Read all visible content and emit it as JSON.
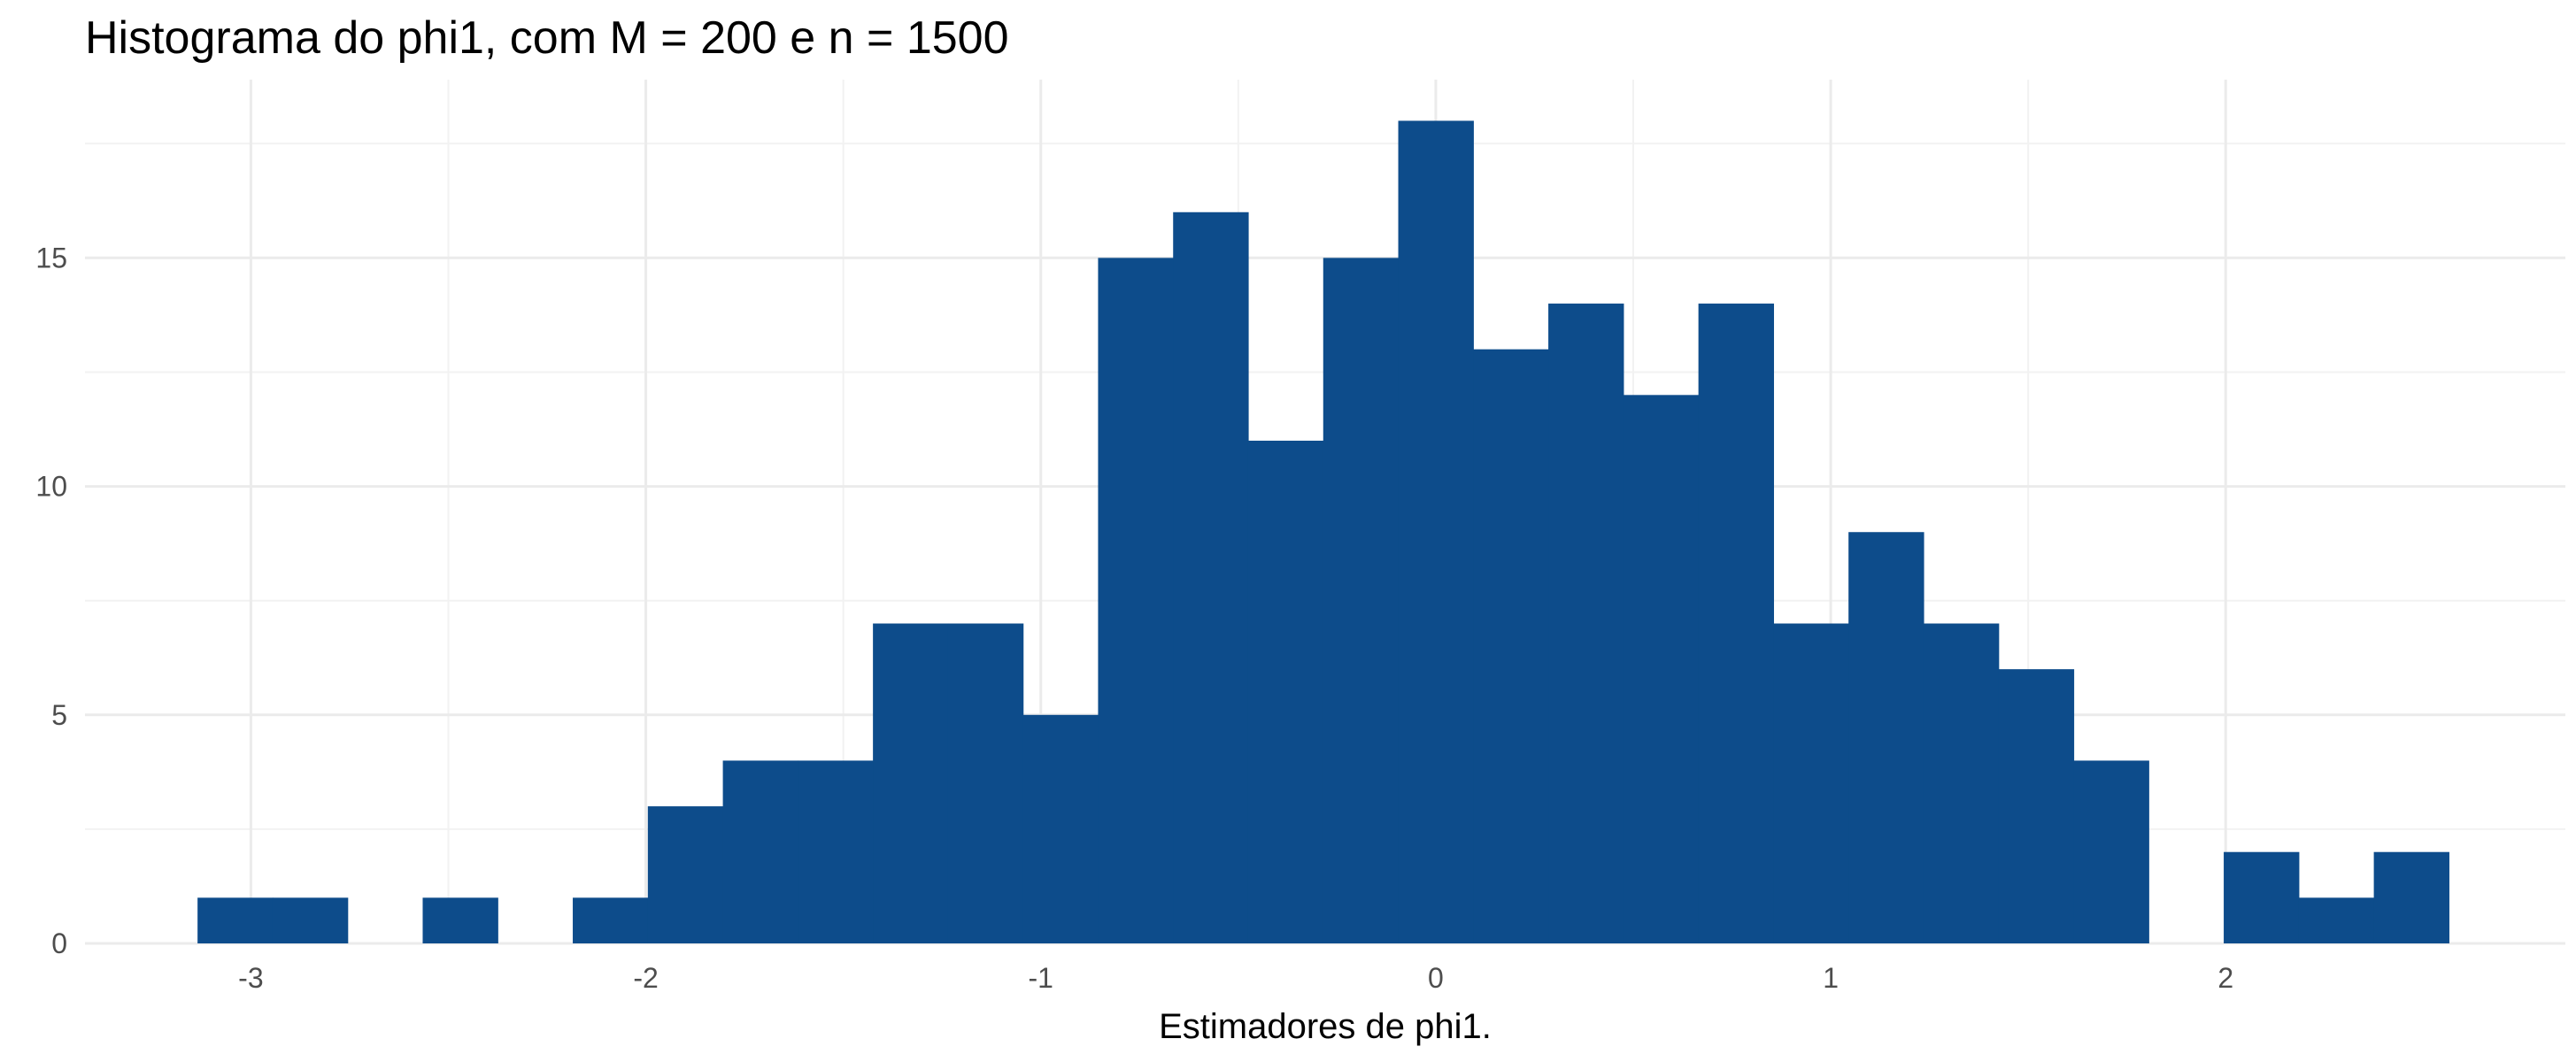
{
  "chart_data": {
    "type": "bar",
    "title": "Histograma do phi1, com M = 200 e n = 1500",
    "xlabel": "Estimadores de phi1.",
    "ylabel": "",
    "xlim": [
      -3.42,
      2.86
    ],
    "ylim": [
      0,
      18.9
    ],
    "x_ticks": [
      -3,
      -2,
      -1,
      0,
      1,
      2
    ],
    "x_tick_labels": [
      "-3",
      "-2",
      "-1",
      "0",
      "1",
      "2"
    ],
    "y_ticks": [
      0,
      5,
      10,
      15
    ],
    "y_tick_labels": [
      "0",
      "5",
      "10",
      "15"
    ],
    "grid": true,
    "legend": "none",
    "bar_color": "#0D4C8B",
    "bin_width": 0.19,
    "bin_centers": [
      -3.04,
      -2.85,
      -2.66,
      -2.47,
      -2.28,
      -2.09,
      -1.9,
      -1.71,
      -1.52,
      -1.33,
      -1.14,
      -0.95,
      -0.76,
      -0.57,
      -0.38,
      -0.19,
      0.0,
      0.19,
      0.38,
      0.57,
      0.76,
      0.95,
      1.14,
      1.33,
      1.52,
      1.71,
      1.9,
      2.09,
      2.28,
      2.47
    ],
    "counts": [
      1,
      1,
      0,
      1,
      0,
      1,
      3,
      4,
      4,
      7,
      7,
      5,
      15,
      16,
      11,
      15,
      18,
      13,
      14,
      12,
      14,
      7,
      9,
      7,
      6,
      4,
      0,
      2,
      1,
      2
    ]
  }
}
